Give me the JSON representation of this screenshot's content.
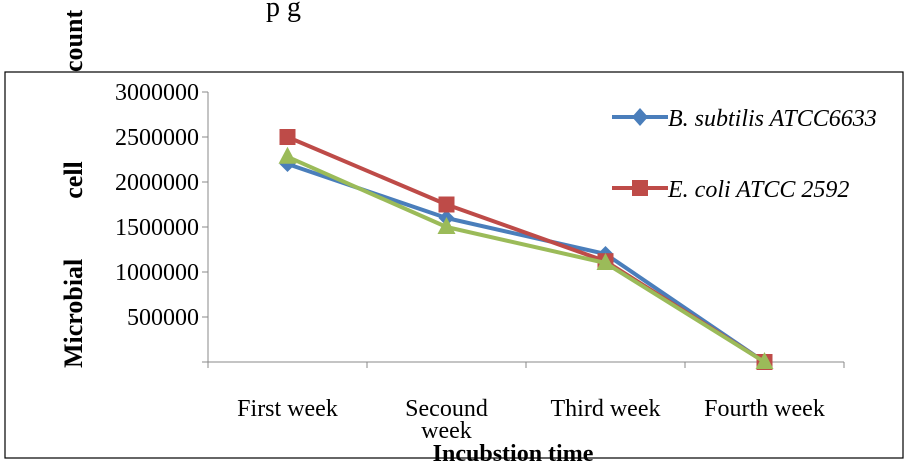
{
  "chart_data": {
    "type": "line",
    "title": "",
    "xlabel": "Incubstion time",
    "ylabel": "Microbial cell count",
    "categories": [
      "First week",
      "Secound week",
      "Third week",
      "Fourth week"
    ],
    "ylim": [
      0,
      3000000
    ],
    "yticks": [
      "3000000",
      "2500000",
      "2000000",
      "1500000",
      "1000000",
      "500000"
    ],
    "grid": false,
    "legend": "top-right",
    "series": [
      {
        "name": "B. subtilis ATCC6633",
        "color": "#4a7ebb",
        "marker": "diamond",
        "values": [
          2200000,
          1600000,
          1200000,
          0
        ]
      },
      {
        "name": "E. coli ATCC 2592",
        "color": "#be4b48",
        "marker": "square",
        "values": [
          2500000,
          1750000,
          1120000,
          0
        ]
      },
      {
        "name": "",
        "color": "#9bbb59",
        "marker": "triangle",
        "values": [
          2280000,
          1500000,
          1100000,
          0
        ]
      }
    ]
  }
}
